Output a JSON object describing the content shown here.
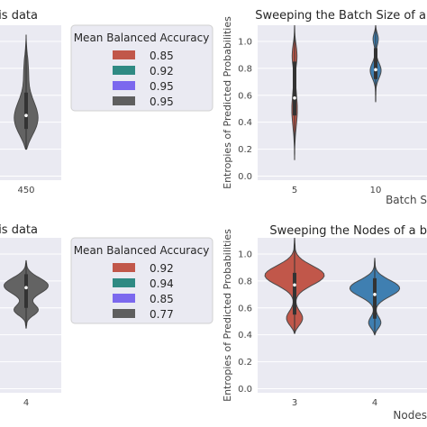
{
  "chart_data": [
    {
      "type": "violin",
      "panel": "top-left",
      "title": "is data",
      "xlabel": "",
      "ylabel": "",
      "categories": [
        "450"
      ],
      "violins": [
        {
          "x": "450",
          "color": "#636363",
          "min": 0.2,
          "max": 1.05,
          "q1": 0.35,
          "median": 0.45,
          "q3": 0.62
        }
      ],
      "grid": true
    },
    {
      "type": "legend",
      "panel": "top-middle",
      "title": "Mean Balanced Accuracy",
      "entries": [
        {
          "label": "0.85",
          "color": "#c1574a"
        },
        {
          "label": "0.92",
          "color": "#2f8a83"
        },
        {
          "label": "0.95",
          "color": "#7b68ee"
        },
        {
          "label": "0.95",
          "color": "#5f5f5f"
        }
      ]
    },
    {
      "type": "violin",
      "panel": "top-right",
      "title": "Sweeping the Batch Size of a",
      "xlabel": "Batch S",
      "ylabel": "Entropies of Predicted Probabilities",
      "categories": [
        "5",
        "10"
      ],
      "yticks": [
        "0.0",
        "0.2",
        "0.4",
        "0.6",
        "0.8",
        "1.0"
      ],
      "ylim": [
        -0.03,
        1.12
      ],
      "violins": [
        {
          "x": "5",
          "color": "#c1574a",
          "min": 0.12,
          "max": 1.12,
          "q1": 0.45,
          "median": 0.58,
          "q3": 0.85
        },
        {
          "x": "10",
          "color": "#3f7fb1",
          "min": 0.55,
          "max": 1.12,
          "q1": 0.72,
          "median": 0.79,
          "q3": 0.95
        }
      ],
      "grid": true
    },
    {
      "type": "violin",
      "panel": "bottom-left",
      "title": "is data",
      "xlabel": "",
      "ylabel": "",
      "categories": [
        "4"
      ],
      "violins": [
        {
          "x": "4",
          "color": "#636363",
          "min": 0.45,
          "max": 0.95,
          "q1": 0.6,
          "median": 0.75,
          "q3": 0.85
        }
      ],
      "grid": true
    },
    {
      "type": "legend",
      "panel": "bottom-middle",
      "title": "Mean Balanced Accuracy",
      "entries": [
        {
          "label": "0.92",
          "color": "#c1574a"
        },
        {
          "label": "0.94",
          "color": "#2f8a83"
        },
        {
          "label": "0.85",
          "color": "#7b68ee"
        },
        {
          "label": "0.77",
          "color": "#5f5f5f"
        }
      ]
    },
    {
      "type": "violin",
      "panel": "bottom-right",
      "title": "Sweeping the Nodes of a b",
      "xlabel": "Nodes",
      "ylabel": "Entropies of Predicted Probabilities",
      "categories": [
        "3",
        "4"
      ],
      "yticks": [
        "0.0",
        "0.2",
        "0.4",
        "0.6",
        "0.8",
        "1.0"
      ],
      "ylim": [
        -0.03,
        1.12
      ],
      "violins": [
        {
          "x": "3",
          "color": "#c1574a",
          "min": 0.41,
          "max": 1.12,
          "q1": 0.55,
          "median": 0.77,
          "q3": 0.86
        },
        {
          "x": "4",
          "color": "#3f7fb1",
          "min": 0.4,
          "max": 0.97,
          "q1": 0.52,
          "median": 0.7,
          "q3": 0.82
        }
      ],
      "grid": true
    }
  ]
}
